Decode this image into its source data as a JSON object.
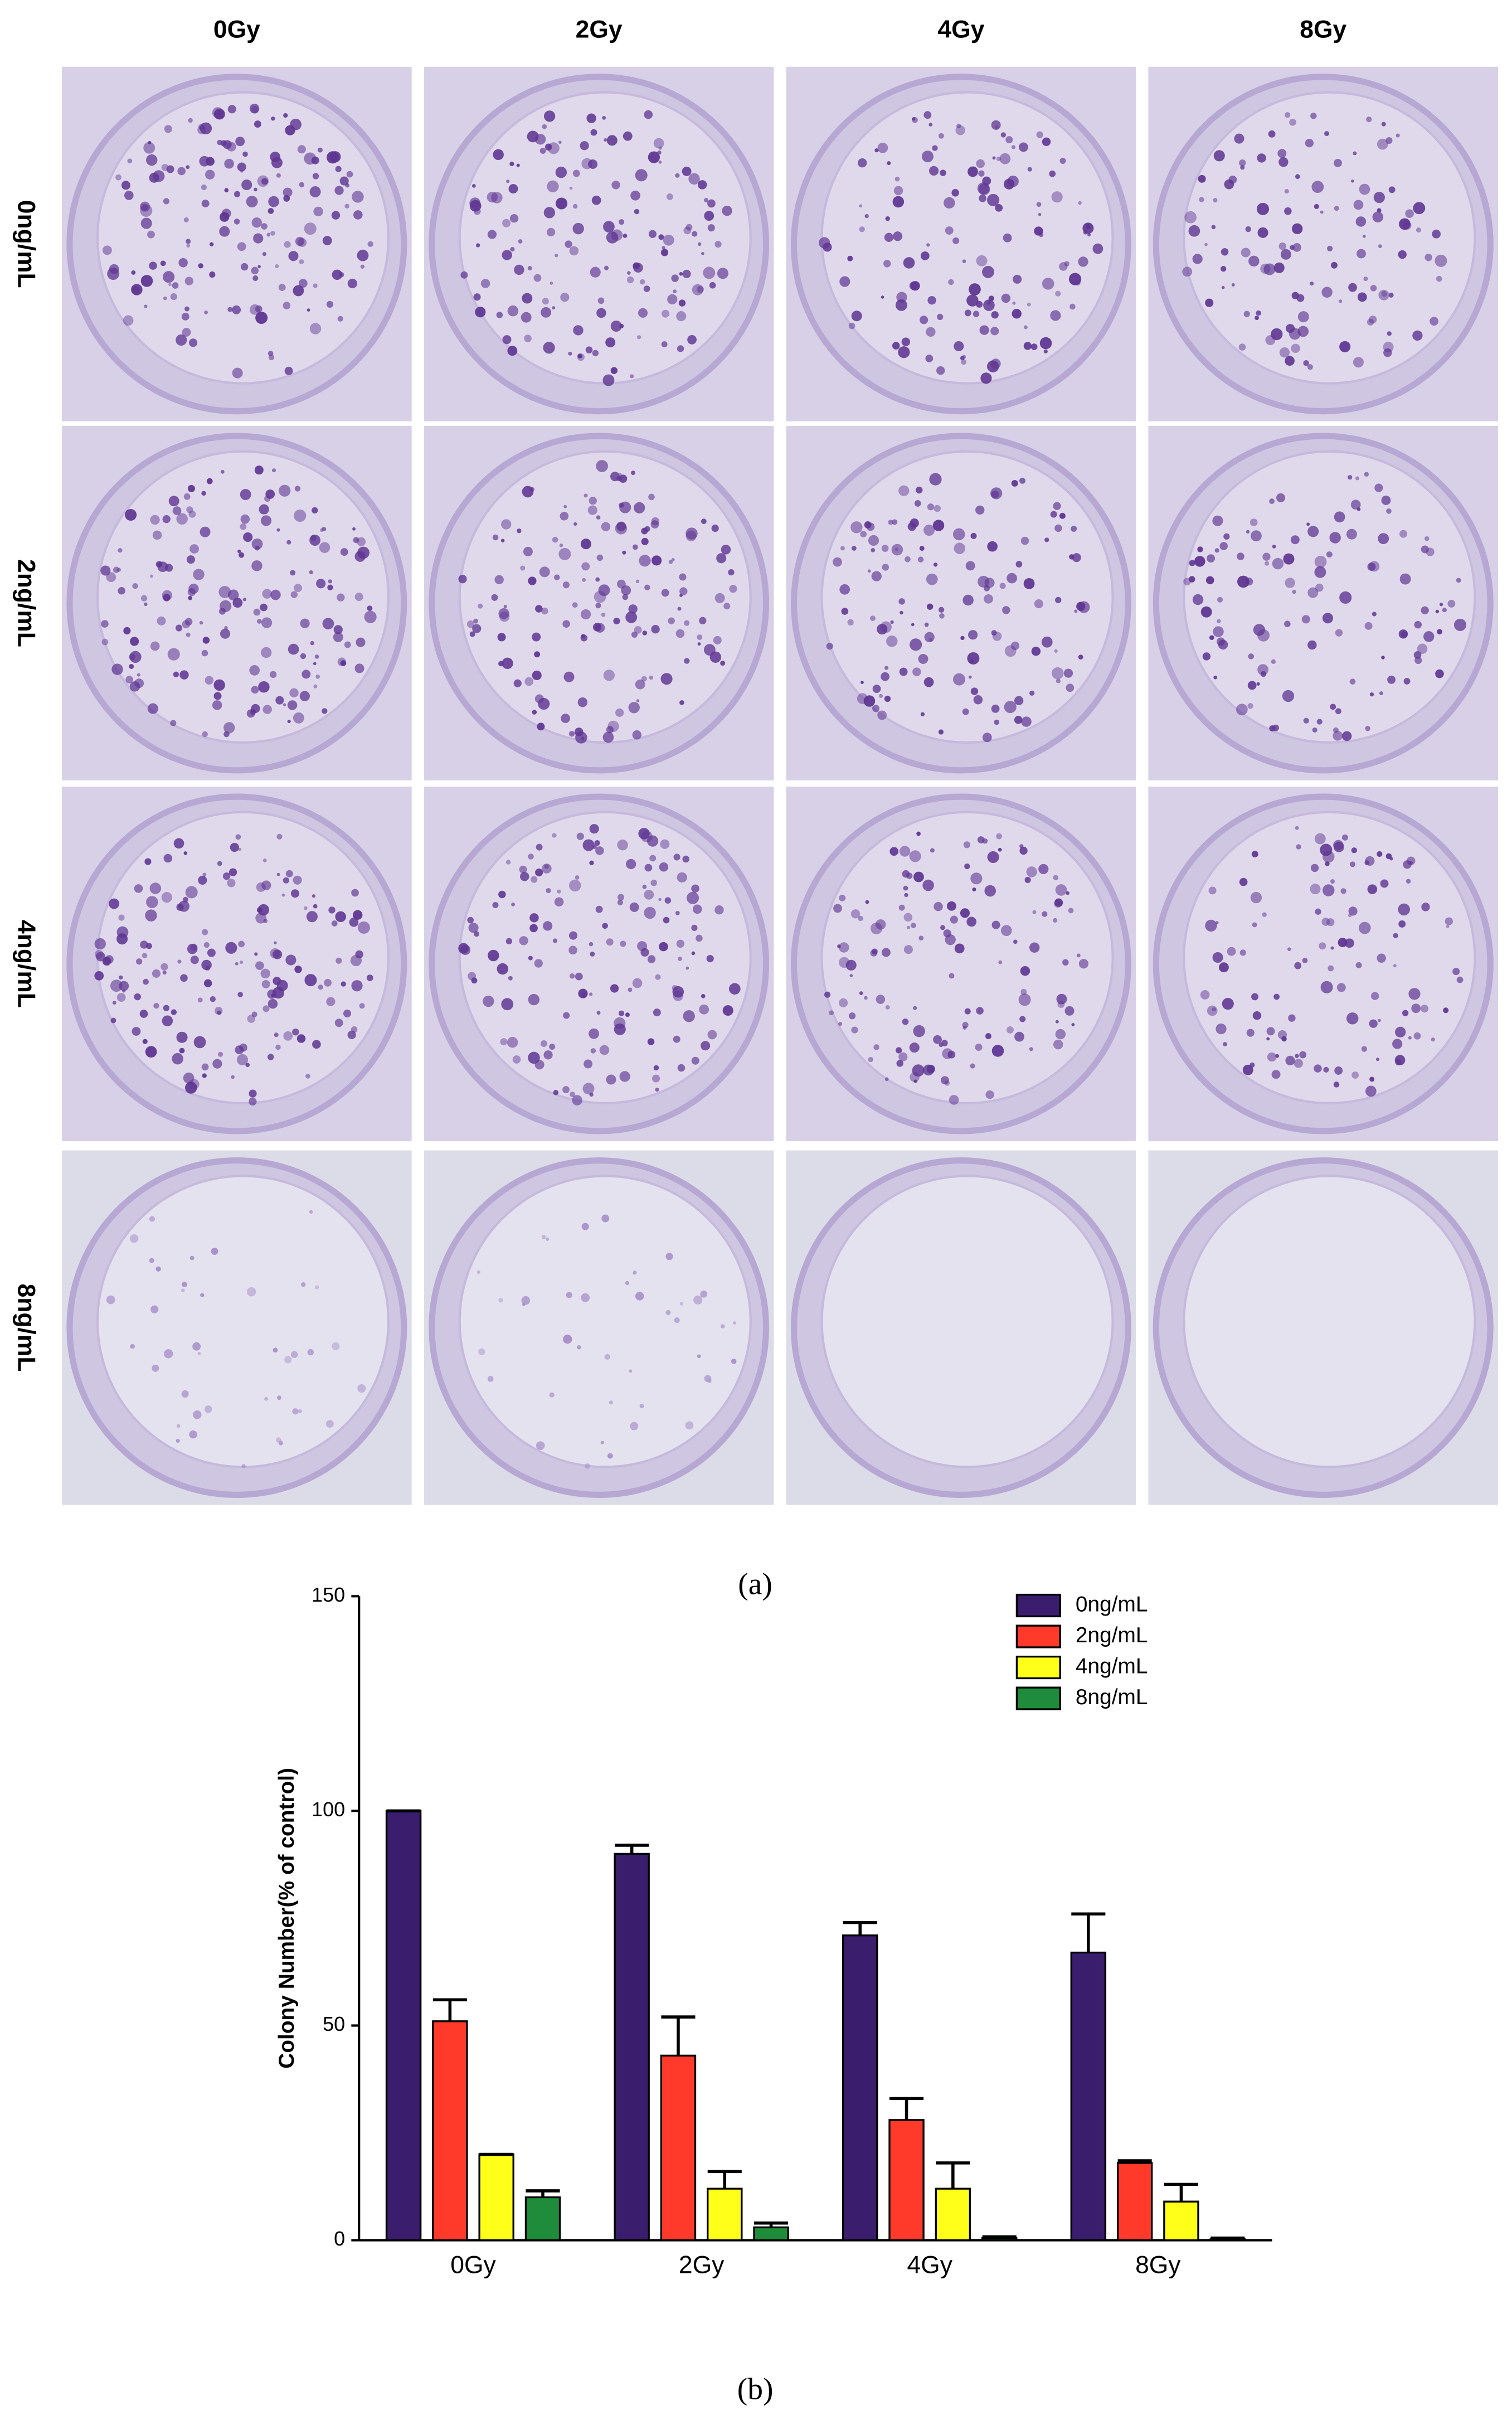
{
  "panel_a": {
    "column_labels": [
      "0Gy",
      "2Gy",
      "4Gy",
      "8Gy"
    ],
    "row_labels": [
      "0ng/mL",
      "2ng/mL",
      "4ng/mL",
      "8ng/mL"
    ],
    "caption": "(a)"
  },
  "chart_data": {
    "type": "bar",
    "y_label": "Colony Number(% of control)",
    "categories": [
      "0Gy",
      "2Gy",
      "4Gy",
      "8Gy"
    ],
    "series": [
      {
        "name": "0ng/mL",
        "color": "#3b1d6e",
        "values": [
          100,
          90,
          71,
          67
        ],
        "errors": [
          0,
          2,
          3,
          9
        ]
      },
      {
        "name": "2ng/mL",
        "color": "#ff3a2a",
        "values": [
          51,
          43,
          28,
          18
        ],
        "errors": [
          5,
          9,
          5,
          0.5
        ]
      },
      {
        "name": "4ng/mL",
        "color": "#ffff1a",
        "values": [
          20,
          12,
          12,
          9
        ],
        "errors": [
          0,
          4,
          6,
          4
        ]
      },
      {
        "name": "8ng/mL",
        "color": "#1e8c3a",
        "values": [
          10,
          3,
          0.5,
          0.3
        ],
        "errors": [
          1.5,
          1,
          0.3,
          0.2
        ]
      }
    ],
    "ylim": [
      0,
      150
    ],
    "yticks": [
      0,
      50,
      100,
      150
    ],
    "legend": "upper right"
  },
  "panel_b_caption": "(b)"
}
